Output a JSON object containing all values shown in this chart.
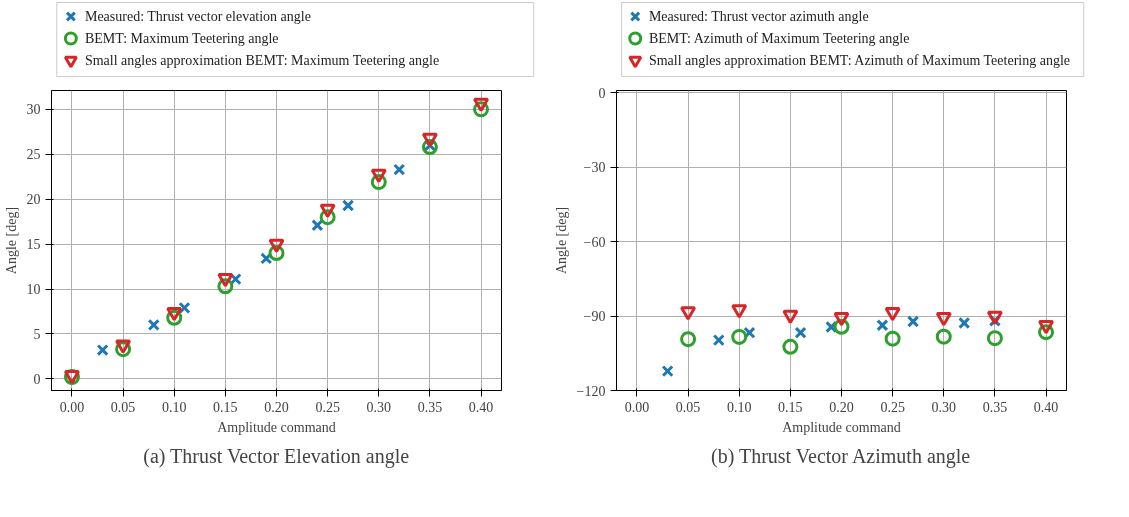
{
  "chart_data": [
    {
      "type": "scatter",
      "xlabel": "Amplitude command",
      "ylabel": "Angle [deg]",
      "xlim": [
        -0.02,
        0.42
      ],
      "ylim": [
        -1.3,
        32.1
      ],
      "xticks": [
        {
          "value": 0,
          "label": "0.00"
        },
        0.05,
        {
          "value": 0.1,
          "label": "0.10"
        },
        0.15,
        {
          "value": 0.2,
          "label": "0.20"
        },
        0.25,
        {
          "value": 0.3,
          "label": "0.30"
        },
        0.35,
        {
          "value": 0.4,
          "label": "0.40"
        }
      ],
      "yticks": [
        0,
        5,
        10,
        15,
        20,
        25,
        30
      ],
      "grid": true,
      "legend": "top",
      "annotations": [
        "(a) Thrust Vector Elevation angle"
      ],
      "series": [
        {
          "name": "Measured: Thrust vector elevation angle",
          "color": "#1f77b4",
          "marker": "cross",
          "x": [
            0.03,
            0.08,
            0.11,
            0.16,
            0.19,
            0.24,
            0.27,
            0.32,
            0.35
          ],
          "values": [
            3.2,
            6.0,
            7.9,
            11.1,
            13.4,
            17.1,
            19.3,
            23.3,
            26.0
          ]
        },
        {
          "name": "BEMT: Maximum Teetering angle",
          "color": "#2ca02c",
          "marker": "circle",
          "x": [
            0,
            0.05,
            0.1,
            0.15,
            0.2,
            0.25,
            0.3,
            0.35,
            0.4
          ],
          "values": [
            0.2,
            3.3,
            6.8,
            10.3,
            14.0,
            18.0,
            21.9,
            25.8,
            30.0
          ]
        },
        {
          "name": "Small angles approximation BEMT: Maximum Teetering angle",
          "color": "#d62728",
          "marker": "triangle",
          "x": [
            0,
            0.05,
            0.1,
            0.15,
            0.2,
            0.25,
            0.3,
            0.35,
            0.4
          ],
          "values": [
            0.4,
            3.8,
            7.4,
            11.2,
            15.0,
            18.9,
            22.8,
            26.8,
            30.7
          ]
        }
      ]
    },
    {
      "type": "scatter",
      "xlabel": "Amplitude command",
      "ylabel": "Angle [deg]",
      "xlim": [
        -0.02,
        0.42
      ],
      "ylim": [
        -120,
        0.9
      ],
      "xticks": [
        {
          "value": 0,
          "label": "0.00"
        },
        0.05,
        {
          "value": 0.1,
          "label": "0.10"
        },
        0.15,
        {
          "value": 0.2,
          "label": "0.20"
        },
        0.25,
        {
          "value": 0.3,
          "label": "0.30"
        },
        0.35,
        {
          "value": 0.4,
          "label": "0.40"
        }
      ],
      "yticks": [
        {
          "value": -120,
          "label": "−120"
        },
        {
          "value": -90,
          "label": "−90"
        },
        {
          "value": -60,
          "label": "−60"
        },
        {
          "value": -30,
          "label": "−30"
        },
        0
      ],
      "grid": true,
      "legend": "top",
      "annotations": [
        "(b) Thrust Vector Azimuth angle"
      ],
      "series": [
        {
          "name": "Measured: Thrust vector azimuth angle",
          "color": "#1f77b4",
          "marker": "cross",
          "x": [
            0.03,
            0.08,
            0.11,
            0.16,
            0.19,
            0.24,
            0.27,
            0.32,
            0.35
          ],
          "values": [
            -112.2,
            -99.7,
            -96.7,
            -96.7,
            -94.4,
            -93.7,
            -92.2,
            -92.8,
            -91.9
          ]
        },
        {
          "name": "BEMT: Azimuth of Maximum Teetering angle",
          "color": "#2ca02c",
          "marker": "circle",
          "x": [
            0.05,
            0.1,
            0.15,
            0.2,
            0.25,
            0.3,
            0.35,
            0.4
          ],
          "values": [
            -99.3,
            -98.4,
            -102.4,
            -94.3,
            -99.1,
            -98.3,
            -98.9,
            -96.5
          ]
        },
        {
          "name": "Small angles approximation BEMT: Azimuth of Maximum Teetering angle",
          "color": "#d62728",
          "marker": "triangle",
          "x": [
            0.05,
            0.1,
            0.15,
            0.2,
            0.25,
            0.3,
            0.35,
            0.4
          ],
          "values": [
            -88.2,
            -87.4,
            -89.6,
            -90.5,
            -88.5,
            -90.5,
            -90.0,
            -93.7
          ]
        }
      ]
    }
  ]
}
